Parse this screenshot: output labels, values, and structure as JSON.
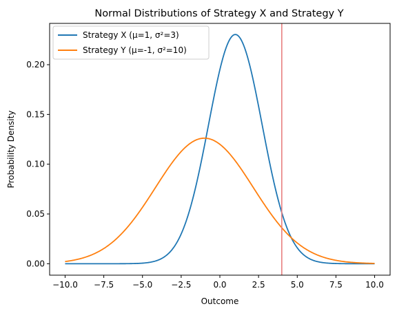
{
  "chart_data": {
    "type": "line",
    "title": "Normal Distributions of Strategy X and Strategy Y",
    "xlabel": "Outcome",
    "ylabel": "Probability Density",
    "xlim": [
      -11,
      11
    ],
    "ylim": [
      -0.0115,
      0.2415
    ],
    "x_ticks": [
      -10.0,
      -7.5,
      -5.0,
      -2.5,
      0.0,
      2.5,
      5.0,
      7.5,
      10.0
    ],
    "x_tick_labels": [
      "−10.0",
      "−7.5",
      "−5.0",
      "−2.5",
      "0.0",
      "2.5",
      "5.0",
      "7.5",
      "10.0"
    ],
    "y_ticks": [
      0.0,
      0.05,
      0.1,
      0.15,
      0.2
    ],
    "y_tick_labels": [
      "0.00",
      "0.05",
      "0.10",
      "0.15",
      "0.20"
    ],
    "x_range": [
      -10,
      10
    ],
    "grid": false,
    "legend_position": "upper-left",
    "series": [
      {
        "name": "Strategy X (μ=1, σ²=3)",
        "distribution": "normal",
        "mean": 1,
        "variance": 3,
        "color": "#1f77b4"
      },
      {
        "name": "Strategy Y (μ=-1, σ²=10)",
        "distribution": "normal",
        "mean": -1,
        "variance": 10,
        "color": "#ff7f0e"
      }
    ],
    "vertical_line": {
      "x": 4,
      "color": "#e88080"
    }
  }
}
